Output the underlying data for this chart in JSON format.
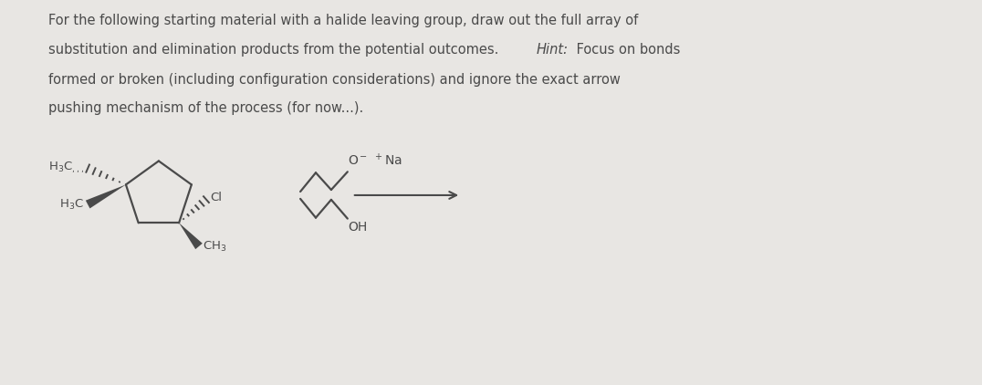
{
  "background_color": "#e8e6e3",
  "text_color": "#4a4a4a",
  "font_size_text": 10.5,
  "fig_width": 10.76,
  "fig_height": 4.22,
  "line1": "For the following starting material with a halide leaving group, draw out the full array of",
  "line2_pre": "substitution and elimination products from the potential outcomes. ",
  "line2_hint": "Hint:",
  "line2_post": " Focus on bonds",
  "line3": "formed or broken (including configuration considerations) and ignore the exact arrow",
  "line4": "pushing mechanism of the process (for now...)."
}
